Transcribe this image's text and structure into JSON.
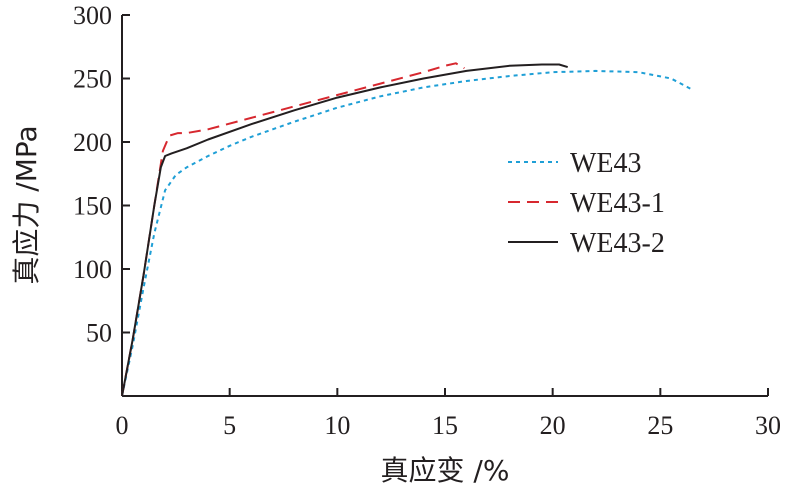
{
  "chart_data": {
    "type": "line",
    "title": "",
    "xlabel": "真应变 /%",
    "ylabel": "真应力 /MPa",
    "xlim": [
      0,
      30
    ],
    "ylim": [
      0,
      300
    ],
    "x_ticks": [
      "0",
      "5",
      "10",
      "15",
      "20",
      "25",
      "30"
    ],
    "y_ticks": [
      "50",
      "100",
      "150",
      "200",
      "250",
      "300"
    ],
    "grid": false,
    "legend_position": "right",
    "series": [
      {
        "name": "WE43",
        "color": "#1f9fd6",
        "style": "dotted",
        "x": [
          0,
          0.5,
          1.0,
          1.5,
          2.0,
          2.5,
          3.0,
          4.0,
          5.0,
          6.0,
          8.0,
          10.0,
          12.0,
          14.0,
          16.0,
          18.0,
          20.0,
          22.0,
          24.0,
          25.5,
          26.5
        ],
        "y": [
          0,
          40,
          85,
          128,
          162,
          174,
          180,
          189,
          197,
          204,
          216,
          227,
          236,
          243,
          248,
          252,
          255,
          256,
          255,
          250,
          241
        ]
      },
      {
        "name": "WE43-1",
        "color": "#d7282f",
        "style": "dashed",
        "x": [
          0,
          0.5,
          1.0,
          1.5,
          1.9,
          2.2,
          2.6,
          3.0,
          4.0,
          6.0,
          8.0,
          10.0,
          12.0,
          14.0,
          15.0,
          15.5,
          15.9
        ],
        "y": [
          0,
          45,
          95,
          150,
          193,
          205,
          207,
          207,
          210,
          219,
          228,
          237,
          246,
          255,
          260,
          262,
          258
        ]
      },
      {
        "name": "WE43-2",
        "color": "#231f20",
        "style": "solid",
        "x": [
          0,
          0.5,
          1.0,
          1.5,
          1.8,
          2.0,
          2.3,
          3.0,
          4.0,
          6.0,
          8.0,
          10.0,
          12.0,
          14.0,
          16.0,
          18.0,
          19.5,
          20.3,
          20.7
        ],
        "y": [
          0,
          45,
          95,
          150,
          180,
          189,
          191,
          195,
          202,
          214,
          225,
          235,
          243,
          250,
          256,
          260,
          261,
          261,
          259
        ]
      }
    ]
  }
}
